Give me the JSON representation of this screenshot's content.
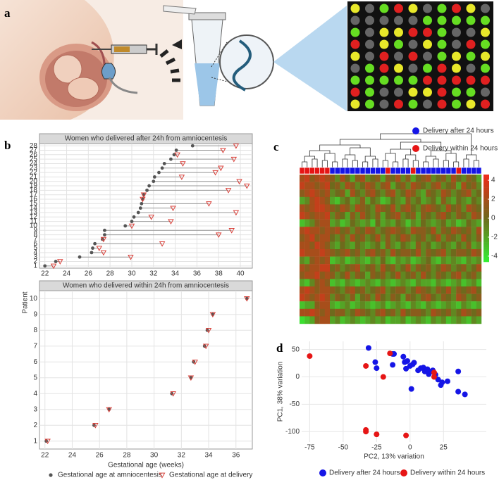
{
  "panels": [
    "a",
    "b",
    "c",
    "d"
  ],
  "chart_data": [
    {
      "type": "dumbbell",
      "title": "Women who delivered after 24h from  amniocentesis",
      "y_label": "Patient",
      "categories": [
        "1",
        "2",
        "3",
        "4",
        "5",
        "6",
        "7",
        "8",
        "9",
        "10",
        "11",
        "12",
        "13",
        "14",
        "15",
        "16",
        "17",
        "18",
        "19",
        "20",
        "21",
        "22",
        "23",
        "24",
        "25",
        "26",
        "27",
        "28"
      ],
      "xlim": [
        21.5,
        41.1
      ],
      "xticks": [
        22,
        24,
        26,
        28,
        30,
        32,
        34,
        36,
        38,
        40
      ],
      "grid": true,
      "series": [
        {
          "color": "#555555",
          "marker": "dot",
          "values": [
            22.0,
            23.0,
            25.2,
            26.3,
            26.4,
            26.6,
            27.3,
            27.5,
            27.5,
            29.4,
            30.0,
            30.2,
            30.6,
            30.8,
            30.9,
            31.0,
            31.1,
            31.4,
            31.6,
            32.0,
            32.1,
            32.5,
            32.8,
            33.0,
            33.6,
            33.9,
            34.1,
            35.6
          ]
        },
        {
          "color": "#d9413a",
          "marker": "triangle",
          "values": [
            22.8,
            23.4,
            29.9,
            27.4,
            27.0,
            32.8,
            27.4,
            38.0,
            39.2,
            30.0,
            33.6,
            31.8,
            39.6,
            33.8,
            37.1,
            31.0,
            31.1,
            38.9,
            40.6,
            39.9,
            34.6,
            37.7,
            38.2,
            34.7,
            39.4,
            34.2,
            38.4,
            39.6
          ]
        }
      ]
    },
    {
      "type": "dumbbell",
      "title": "Women who delivered within 24h from  amniocentesis",
      "x_label": "Gestational age (weeks)",
      "categories": [
        "1",
        "2",
        "3",
        "4",
        "5",
        "6",
        "7",
        "8",
        "9",
        "10"
      ],
      "xlim": [
        21.6,
        37.2
      ],
      "xticks": [
        22,
        24,
        26,
        28,
        30,
        32,
        34,
        36
      ],
      "grid": true,
      "series": [
        {
          "name": "Gestational age at amniocentesis",
          "color": "#555555",
          "marker": "dot",
          "values": [
            22.1,
            25.6,
            26.7,
            31.3,
            32.7,
            32.9,
            33.7,
            33.9,
            34.3,
            36.8
          ]
        },
        {
          "name": "Gestational age at delivery",
          "color": "#d9413a",
          "marker": "triangle",
          "values": [
            22.2,
            25.7,
            26.7,
            31.4,
            32.7,
            33.0,
            33.8,
            34.0,
            34.3,
            36.8
          ]
        }
      ]
    },
    {
      "type": "heatmap",
      "series": [
        {
          "name": "Delivery after 24 hours",
          "color": "#1515e6"
        },
        {
          "name": "Delivery within 24 hours",
          "color": "#e61515"
        }
      ],
      "column_groups": [
        1,
        1,
        1,
        1,
        1,
        1,
        0,
        0,
        0,
        0,
        0,
        0,
        0,
        0,
        0,
        0,
        0,
        1,
        0,
        0,
        0,
        0,
        1,
        0,
        0,
        0,
        0,
        0,
        0,
        0,
        0,
        1,
        0,
        0,
        0,
        0
      ],
      "zlim": [
        -4.6,
        4.6
      ],
      "zticks": [
        4,
        2,
        0,
        -2,
        -4
      ],
      "colors": {
        "low": "#33f033",
        "mid": "#6e6a1c",
        "high": "#f02a1a"
      },
      "values": [
        [
          2,
          3,
          1,
          2,
          3,
          2,
          1,
          -1,
          2,
          0,
          -2,
          1,
          2,
          -1,
          0,
          1,
          -2,
          1,
          0,
          2,
          -1,
          1,
          -2,
          0,
          1,
          2,
          -1,
          0,
          1,
          -1,
          2,
          0,
          -1,
          1,
          0,
          -2
        ],
        [
          3,
          2,
          2,
          1,
          2,
          3,
          0,
          1,
          -1,
          2,
          1,
          -1,
          0,
          2,
          1,
          -1,
          1,
          2,
          -2,
          0,
          1,
          -1,
          2,
          1,
          0,
          -1,
          1,
          2,
          -1,
          0,
          1,
          -2,
          2,
          0,
          1,
          -1
        ],
        [
          1,
          2,
          3,
          2,
          1,
          2,
          -1,
          0,
          1,
          -2,
          2,
          0,
          -1,
          1,
          2,
          0,
          -1,
          1,
          2,
          -1,
          0,
          2,
          1,
          -1,
          -2,
          1,
          0,
          -1,
          2,
          1,
          -1,
          0,
          1,
          2,
          -1,
          0
        ],
        [
          -2,
          -1,
          2,
          3,
          2,
          1,
          -2,
          -3,
          -1,
          0,
          -2,
          -1,
          1,
          -2,
          0,
          -1,
          -3,
          -2,
          0,
          -1,
          -2,
          1,
          -1,
          0,
          -2,
          -1,
          0,
          -2,
          1,
          -1,
          -2,
          0,
          -1,
          -2,
          0,
          -1
        ],
        [
          2,
          1,
          2,
          3,
          3,
          2,
          1,
          0,
          2,
          1,
          -1,
          2,
          1,
          0,
          -1,
          2,
          1,
          0,
          2,
          -1,
          1,
          2,
          0,
          -1,
          1,
          2,
          1,
          0,
          -1,
          2,
          0,
          1,
          -1,
          2,
          1,
          0
        ],
        [
          3,
          2,
          1,
          2,
          2,
          3,
          -1,
          1,
          0,
          -2,
          1,
          -1,
          2,
          0,
          -1,
          1,
          -2,
          0,
          1,
          2,
          -1,
          0,
          1,
          -2,
          1,
          0,
          -1,
          1,
          2,
          0,
          -1,
          1,
          0,
          -1,
          2,
          1
        ],
        [
          -3,
          -2,
          -1,
          1,
          2,
          2,
          -2,
          -1,
          -3,
          -2,
          0,
          -1,
          -2,
          -1,
          -3,
          0,
          -2,
          -1,
          -2,
          0,
          -1,
          -3,
          -1,
          -2,
          0,
          -1,
          -2,
          -1,
          0,
          -2,
          -1,
          -3,
          -2,
          0,
          -1,
          -2
        ],
        [
          2,
          3,
          2,
          2,
          1,
          2,
          1,
          2,
          0,
          1,
          -1,
          1,
          0,
          2,
          1,
          -1,
          0,
          1,
          2,
          1,
          0,
          -1,
          2,
          1,
          1,
          0,
          2,
          -1,
          1,
          0,
          2,
          1,
          0,
          1,
          -1,
          2
        ],
        [
          1,
          2,
          3,
          1,
          2,
          2,
          0,
          -1,
          1,
          -1,
          2,
          0,
          1,
          -1,
          0,
          2,
          -1,
          1,
          -1,
          0,
          2,
          1,
          -1,
          0,
          1,
          -1,
          0,
          2,
          -1,
          1,
          0,
          -1,
          2,
          0,
          -1,
          1
        ],
        [
          2,
          2,
          1,
          3,
          2,
          1,
          -1,
          -2,
          0,
          -1,
          -2,
          0,
          -1,
          -2,
          -1,
          0,
          -2,
          1,
          -1,
          -2,
          0,
          -1,
          -2,
          1,
          -1,
          0,
          -2,
          -1,
          0,
          -1,
          -2,
          0,
          -1,
          1,
          -2,
          -1
        ],
        [
          3,
          2,
          2,
          2,
          3,
          2,
          1,
          0,
          1,
          2,
          0,
          1,
          -1,
          1,
          2,
          0,
          1,
          -1,
          2,
          0,
          1,
          1,
          0,
          2,
          -1,
          1,
          0,
          1,
          2,
          -1,
          0,
          1,
          1,
          0,
          2,
          1
        ],
        [
          -1,
          -2,
          1,
          2,
          1,
          2,
          -3,
          -2,
          -1,
          -3,
          -2,
          -1,
          -2,
          -3,
          -1,
          -2,
          0,
          -2,
          -3,
          -1,
          -2,
          -1,
          -3,
          -2,
          -1,
          0,
          -2,
          -3,
          -1,
          -2,
          -1,
          -2,
          -3,
          -1,
          -2,
          -1
        ],
        [
          2,
          1,
          2,
          2,
          3,
          3,
          0,
          1,
          -1,
          0,
          1,
          2,
          -1,
          0,
          1,
          -1,
          2,
          0,
          1,
          -1,
          0,
          2,
          -1,
          1,
          0,
          1,
          -1,
          0,
          2,
          1,
          -1,
          0,
          1,
          -1,
          0,
          2
        ],
        [
          1,
          2,
          2,
          3,
          1,
          2,
          1,
          -1,
          0,
          2,
          -1,
          1,
          0,
          -2,
          1,
          0,
          1,
          -1,
          0,
          2,
          -1,
          0,
          1,
          -1,
          2,
          0,
          -1,
          1,
          0,
          -1,
          1,
          2,
          -1,
          0,
          1,
          -1
        ],
        [
          -2,
          -3,
          -1,
          1,
          2,
          1,
          -3,
          -2,
          -3,
          -1,
          -2,
          -3,
          -2,
          -1,
          -2,
          -3,
          -1,
          -2,
          -3,
          -2,
          -1,
          -2,
          -3,
          -1,
          -2,
          -2,
          -3,
          -1,
          -2,
          -3,
          -2,
          -1,
          -3,
          -2,
          -1,
          -3
        ],
        [
          2,
          3,
          2,
          1,
          2,
          2,
          1,
          0,
          -1,
          1,
          2,
          0,
          1,
          -1,
          0,
          1,
          2,
          -1,
          0,
          1,
          1,
          -1,
          0,
          2,
          1,
          0,
          -1,
          1,
          0,
          2,
          -1,
          1,
          0,
          1,
          2,
          0
        ],
        [
          3,
          2,
          1,
          2,
          3,
          2,
          -1,
          1,
          0,
          -1,
          1,
          -2,
          0,
          1,
          -1,
          2,
          0,
          -1,
          1,
          0,
          -2,
          1,
          0,
          -1,
          1,
          2,
          0,
          -1,
          1,
          0,
          -1,
          2,
          1,
          -1,
          0,
          1
        ],
        [
          -3,
          -2,
          -2,
          1,
          2,
          2,
          -2,
          -3,
          -2,
          -1,
          -3,
          -2,
          -1,
          -2,
          -3,
          -2,
          -1,
          -3,
          -2,
          -1,
          -2,
          -3,
          -1,
          -2,
          -3,
          -1,
          -2,
          -3,
          -2,
          -1,
          -2,
          -3,
          -1,
          -2,
          -3,
          -2
        ],
        [
          2,
          2,
          3,
          2,
          1,
          2,
          0,
          1,
          1,
          -1,
          0,
          2,
          1,
          0,
          -1,
          1,
          2,
          0,
          1,
          -1,
          2,
          0,
          1,
          1,
          0,
          -1,
          2,
          1,
          0,
          1,
          -1,
          0,
          2,
          1,
          0,
          1
        ],
        [
          -4,
          -3,
          -2,
          1,
          2,
          2,
          -2,
          -1,
          -3,
          -2,
          -1,
          -2,
          -3,
          -2,
          -1,
          -2,
          -1,
          -3,
          -2,
          -2,
          -1,
          -3,
          -2,
          -1,
          -2,
          -3,
          -1,
          -2,
          -1,
          -3,
          -2,
          -1,
          -2,
          -3,
          -1,
          -2
        ]
      ]
    },
    {
      "type": "scatter",
      "x_label": "PC2, 13% variation",
      "y_label": "PC1, 38% variation",
      "xlim": [
        -81,
        57
      ],
      "xticks": [
        -75,
        -50,
        -25,
        0,
        25
      ],
      "ylim": [
        -119,
        65
      ],
      "yticks": [
        -100,
        -50,
        0,
        50
      ],
      "grid": true,
      "series": [
        {
          "name": "Delivery after 24 hours",
          "color": "#1515e6",
          "x": [
            -31,
            -26,
            -25,
            -13,
            -12,
            -13,
            -5,
            -4,
            -2,
            0,
            2,
            3,
            1,
            8,
            10,
            11,
            13,
            14,
            16,
            17,
            19,
            21,
            23,
            24,
            28,
            36,
            36,
            41,
            -3,
            6
          ],
          "values": [
            53,
            27,
            16,
            42,
            42,
            22,
            37,
            27,
            29,
            20,
            23,
            26,
            -22,
            16,
            17,
            10,
            14,
            5,
            10,
            12,
            4,
            -5,
            -15,
            -10,
            -8,
            10,
            -27,
            -32,
            15,
            12
          ]
        },
        {
          "name": "Delivery within 24 hours",
          "color": "#e61515",
          "x": [
            -75,
            -33,
            -20,
            -15,
            18,
            18,
            -33,
            -33,
            -25,
            -3
          ],
          "values": [
            38,
            20,
            0,
            43,
            8,
            0,
            -97,
            -100,
            -105,
            -107
          ]
        }
      ]
    }
  ]
}
